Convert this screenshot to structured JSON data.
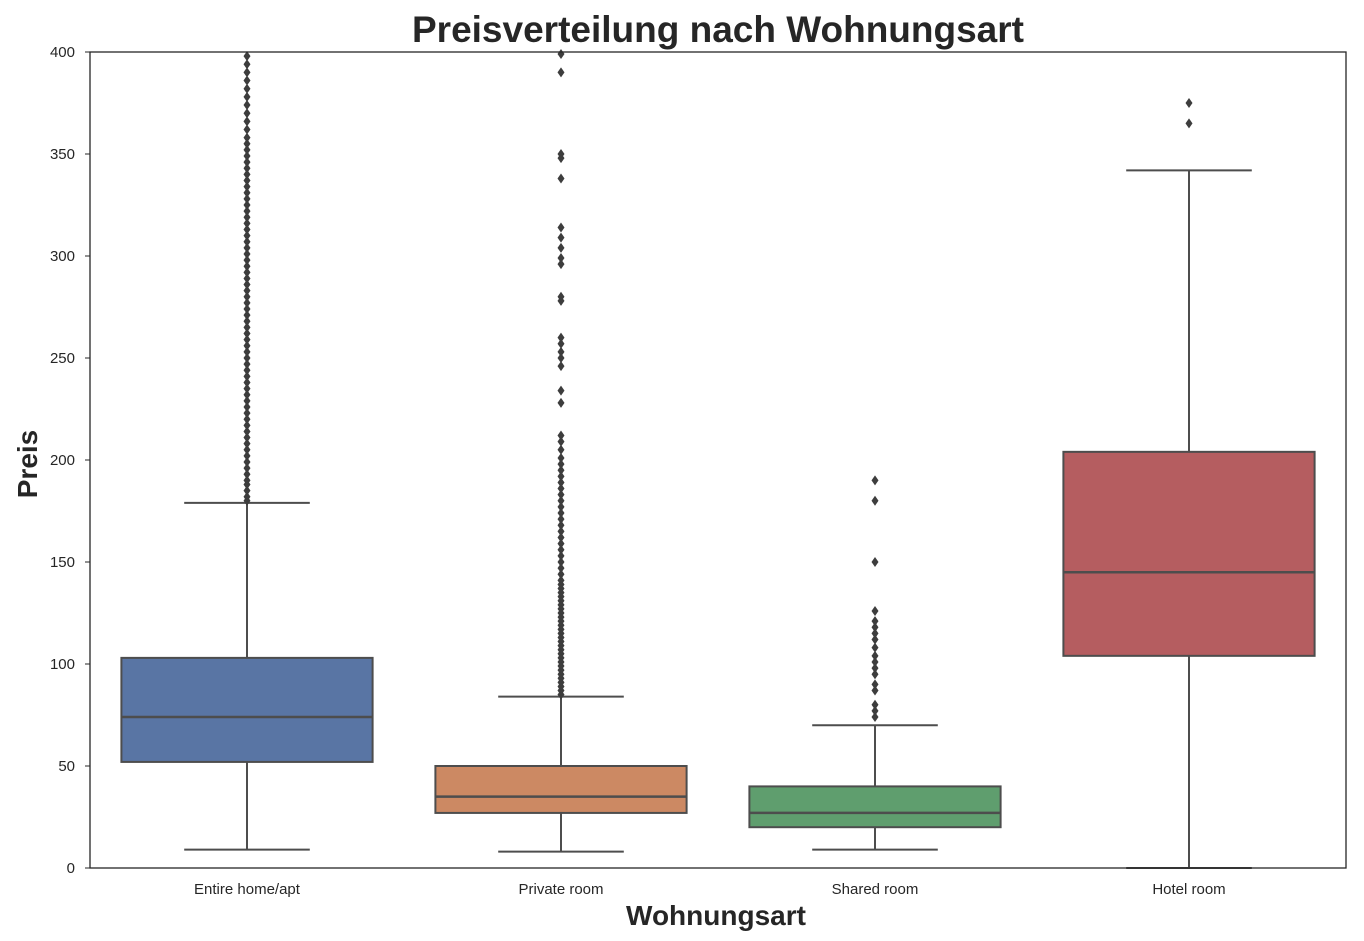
{
  "chart_data": {
    "type": "box",
    "title": "Preisverteilung nach Wohnungsart",
    "xlabel": "Wohnungsart",
    "ylabel": "Preis",
    "ylim": [
      0,
      400
    ],
    "yticks": [
      0,
      50,
      100,
      150,
      200,
      250,
      300,
      350,
      400
    ],
    "grid": false,
    "categories": [
      "Entire home/apt",
      "Private room",
      "Shared room",
      "Hotel room"
    ],
    "colors": [
      "#5975a4",
      "#cc8963",
      "#5f9e6e",
      "#b55d60"
    ],
    "boxes": [
      {
        "category": "Entire home/apt",
        "whisker_low": 9,
        "q1": 52,
        "median": 74,
        "q3": 103,
        "whisker_high": 179,
        "outliers": [
          180,
          182,
          185,
          188,
          190,
          193,
          196,
          199,
          202,
          205,
          208,
          211,
          214,
          217,
          220,
          223,
          226,
          229,
          232,
          235,
          238,
          241,
          244,
          247,
          250,
          253,
          256,
          259,
          262,
          265,
          268,
          271,
          274,
          277,
          280,
          283,
          286,
          289,
          292,
          295,
          298,
          301,
          304,
          307,
          310,
          313,
          316,
          319,
          322,
          325,
          328,
          331,
          334,
          337,
          340,
          343,
          346,
          349,
          352,
          355,
          358,
          362,
          366,
          370,
          374,
          378,
          382,
          386,
          390,
          394,
          398
        ]
      },
      {
        "category": "Private room",
        "whisker_low": 8,
        "q1": 27,
        "median": 35,
        "q3": 50,
        "whisker_high": 84,
        "outliers": [
          85,
          87,
          89,
          91,
          93,
          95,
          97,
          99,
          101,
          103,
          105,
          107,
          109,
          111,
          113,
          115,
          117,
          119,
          121,
          123,
          125,
          127,
          129,
          131,
          133,
          135,
          137,
          139,
          141,
          144,
          147,
          150,
          153,
          156,
          159,
          162,
          165,
          168,
          171,
          174,
          177,
          180,
          183,
          186,
          189,
          192,
          195,
          198,
          201,
          205,
          209,
          212,
          228,
          234,
          246,
          250,
          253,
          257,
          260,
          278,
          280,
          296,
          299,
          304,
          309,
          314,
          338,
          348,
          350,
          390,
          399
        ]
      },
      {
        "category": "Shared room",
        "whisker_low": 9,
        "q1": 20,
        "median": 27,
        "q3": 40,
        "whisker_high": 70,
        "outliers": [
          74,
          77,
          80,
          87,
          90,
          95,
          98,
          101,
          104,
          108,
          112,
          115,
          118,
          121,
          126,
          150,
          180,
          190
        ]
      },
      {
        "category": "Hotel room",
        "whisker_low": 0,
        "q1": 104,
        "median": 145,
        "q3": 204,
        "whisker_high": 342,
        "outliers": [
          365,
          375
        ]
      }
    ]
  }
}
